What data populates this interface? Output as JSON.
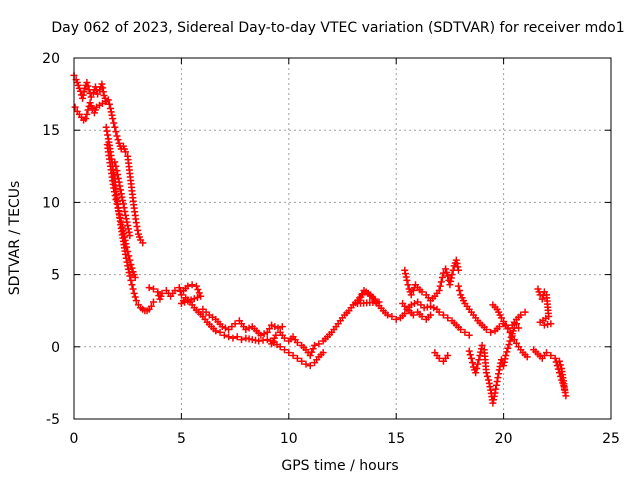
{
  "chart_data": {
    "type": "scatter",
    "title": "Day 062 of 2023, Sidereal Day-to-day VTEC variation (SDTVAR) for receiver mdo1",
    "xlabel": "GPS time / hours",
    "ylabel": "SDTVAR / TECUs",
    "xlim": [
      0,
      25
    ],
    "ylim": [
      -5,
      20
    ],
    "xticks": [
      "0",
      "5",
      "10",
      "15",
      "20",
      "25"
    ],
    "yticks": [
      "-5",
      "0",
      "5",
      "10",
      "15",
      "20"
    ],
    "grid": true,
    "marker": "+",
    "color": "#ff0000",
    "series": [
      {
        "name": "SDTVAR",
        "points": [
          [
            0.0,
            18.8
          ],
          [
            0.1,
            18.5
          ],
          [
            0.2,
            18.1
          ],
          [
            0.3,
            17.7
          ],
          [
            0.4,
            17.2
          ],
          [
            0.5,
            17.9
          ],
          [
            0.6,
            18.3
          ],
          [
            0.7,
            17.8
          ],
          [
            0.8,
            17.3
          ],
          [
            0.9,
            17.6
          ],
          [
            1.0,
            18.0
          ],
          [
            1.1,
            17.5
          ],
          [
            1.2,
            17.8
          ],
          [
            1.3,
            18.2
          ],
          [
            1.4,
            17.4
          ],
          [
            1.5,
            17.0
          ],
          [
            0.05,
            16.6
          ],
          [
            0.15,
            16.3
          ],
          [
            0.25,
            16.1
          ],
          [
            0.35,
            15.9
          ],
          [
            0.45,
            15.7
          ],
          [
            0.55,
            15.8
          ],
          [
            0.65,
            16.4
          ],
          [
            0.75,
            16.9
          ],
          [
            0.85,
            16.5
          ],
          [
            0.95,
            16.2
          ],
          [
            1.05,
            16.6
          ],
          [
            1.6,
            17.1
          ],
          [
            1.7,
            16.5
          ],
          [
            1.8,
            15.8
          ],
          [
            1.9,
            15.2
          ],
          [
            2.0,
            14.6
          ],
          [
            2.1,
            14.1
          ],
          [
            2.2,
            13.7
          ],
          [
            2.3,
            13.9
          ],
          [
            2.4,
            13.5
          ],
          [
            2.5,
            13.2
          ],
          [
            2.6,
            12.0
          ],
          [
            2.7,
            10.8
          ],
          [
            2.8,
            9.6
          ],
          [
            2.9,
            8.6
          ],
          [
            3.0,
            7.8
          ],
          [
            3.1,
            7.4
          ],
          [
            3.2,
            7.2
          ],
          [
            1.5,
            15.2
          ],
          [
            1.6,
            14.4
          ],
          [
            1.7,
            13.5
          ],
          [
            1.8,
            12.5
          ],
          [
            1.9,
            11.4
          ],
          [
            2.0,
            10.3
          ],
          [
            2.1,
            9.2
          ],
          [
            2.2,
            8.2
          ],
          [
            2.3,
            7.3
          ],
          [
            2.4,
            6.4
          ],
          [
            2.5,
            5.6
          ],
          [
            2.6,
            4.9
          ],
          [
            2.7,
            4.3
          ],
          [
            2.8,
            3.7
          ],
          [
            2.9,
            3.2
          ],
          [
            3.0,
            2.9
          ],
          [
            3.1,
            2.7
          ],
          [
            3.2,
            2.6
          ],
          [
            3.3,
            2.5
          ],
          [
            3.4,
            2.5
          ],
          [
            3.5,
            2.6
          ],
          [
            3.6,
            2.8
          ],
          [
            3.7,
            3.1
          ],
          [
            1.55,
            14.0
          ],
          [
            1.65,
            13.0
          ],
          [
            1.75,
            12.0
          ],
          [
            1.85,
            11.0
          ],
          [
            1.95,
            10.2
          ],
          [
            2.05,
            9.6
          ],
          [
            2.15,
            8.9
          ],
          [
            2.25,
            8.3
          ],
          [
            2.35,
            7.6
          ],
          [
            2.45,
            6.9
          ],
          [
            2.55,
            6.3
          ],
          [
            2.65,
            5.7
          ],
          [
            2.75,
            5.2
          ],
          [
            2.85,
            4.8
          ],
          [
            1.9,
            12.8
          ],
          [
            2.0,
            12.2
          ],
          [
            2.1,
            11.4
          ],
          [
            2.2,
            10.6
          ],
          [
            2.3,
            9.9
          ],
          [
            2.4,
            9.1
          ],
          [
            2.5,
            8.4
          ],
          [
            2.6,
            7.7
          ],
          [
            3.5,
            4.1
          ],
          [
            3.7,
            4.0
          ],
          [
            3.9,
            3.8
          ],
          [
            4.0,
            3.3
          ],
          [
            4.1,
            3.7
          ],
          [
            4.3,
            3.9
          ],
          [
            4.5,
            3.5
          ],
          [
            4.7,
            3.9
          ],
          [
            4.9,
            4.1
          ],
          [
            5.0,
            3.6
          ],
          [
            5.1,
            3.9
          ],
          [
            5.3,
            4.2
          ],
          [
            5.5,
            4.3
          ],
          [
            5.7,
            4.2
          ],
          [
            5.9,
            3.5
          ],
          [
            5.0,
            3.0
          ],
          [
            5.2,
            3.4
          ],
          [
            5.4,
            3.1
          ],
          [
            5.6,
            2.7
          ],
          [
            5.8,
            2.4
          ],
          [
            6.0,
            2.1
          ],
          [
            6.2,
            1.7
          ],
          [
            6.4,
            1.4
          ],
          [
            6.6,
            1.1
          ],
          [
            6.8,
            1.0
          ],
          [
            7.0,
            0.8
          ],
          [
            7.2,
            0.7
          ],
          [
            7.4,
            0.6
          ],
          [
            7.6,
            0.7
          ],
          [
            7.8,
            0.5
          ],
          [
            6.0,
            2.6
          ],
          [
            6.3,
            2.2
          ],
          [
            6.6,
            1.9
          ],
          [
            6.9,
            1.4
          ],
          [
            7.2,
            1.2
          ],
          [
            7.5,
            1.6
          ],
          [
            7.7,
            1.8
          ],
          [
            8.0,
            1.2
          ],
          [
            8.3,
            1.4
          ],
          [
            8.5,
            1.1
          ],
          [
            8.7,
            0.8
          ],
          [
            9.0,
            1.0
          ],
          [
            9.2,
            1.5
          ],
          [
            9.5,
            1.3
          ],
          [
            9.7,
            1.4
          ],
          [
            8.0,
            0.6
          ],
          [
            8.3,
            0.5
          ],
          [
            8.6,
            0.4
          ],
          [
            9.0,
            0.5
          ],
          [
            9.3,
            0.3
          ],
          [
            9.6,
            0.0
          ],
          [
            9.8,
            -0.2
          ],
          [
            10.0,
            -0.4
          ],
          [
            10.2,
            -0.6
          ],
          [
            10.4,
            -0.8
          ],
          [
            10.6,
            -1.0
          ],
          [
            10.8,
            -1.2
          ],
          [
            11.0,
            -1.3
          ],
          [
            11.2,
            -1.1
          ],
          [
            11.4,
            -0.7
          ],
          [
            11.6,
            -0.4
          ],
          [
            9.2,
            0.2
          ],
          [
            9.4,
            0.8
          ],
          [
            9.6,
            1.0
          ],
          [
            9.8,
            0.6
          ],
          [
            10.0,
            0.4
          ],
          [
            10.2,
            0.7
          ],
          [
            10.4,
            0.3
          ],
          [
            10.6,
            0.1
          ],
          [
            10.8,
            -0.2
          ],
          [
            11.0,
            -0.6
          ],
          [
            11.2,
            0.1
          ],
          [
            11.4,
            0.2
          ],
          [
            11.6,
            0.4
          ],
          [
            11.8,
            0.7
          ],
          [
            12.0,
            1.0
          ],
          [
            12.2,
            1.4
          ],
          [
            12.4,
            1.8
          ],
          [
            12.6,
            2.2
          ],
          [
            12.8,
            2.5
          ],
          [
            13.0,
            2.9
          ],
          [
            13.2,
            3.2
          ],
          [
            13.4,
            3.6
          ],
          [
            13.6,
            3.8
          ],
          [
            13.8,
            3.6
          ],
          [
            14.0,
            3.3
          ],
          [
            14.2,
            3.1
          ],
          [
            13.2,
            3.0
          ],
          [
            13.5,
            3.9
          ],
          [
            13.7,
            3.7
          ],
          [
            14.4,
            2.5
          ],
          [
            14.6,
            2.2
          ],
          [
            14.8,
            2.1
          ],
          [
            15.0,
            1.9
          ],
          [
            15.2,
            2.0
          ],
          [
            15.4,
            2.3
          ],
          [
            15.6,
            2.5
          ],
          [
            15.8,
            2.2
          ],
          [
            16.0,
            2.4
          ],
          [
            16.2,
            2.1
          ],
          [
            16.4,
            1.9
          ],
          [
            16.6,
            2.2
          ],
          [
            15.4,
            5.3
          ],
          [
            15.5,
            4.6
          ],
          [
            15.6,
            4.0
          ],
          [
            15.7,
            3.6
          ],
          [
            15.8,
            3.9
          ],
          [
            15.9,
            4.3
          ],
          [
            16.0,
            4.1
          ],
          [
            16.2,
            3.8
          ],
          [
            16.4,
            3.6
          ],
          [
            16.6,
            3.2
          ],
          [
            16.8,
            3.5
          ],
          [
            17.0,
            3.9
          ],
          [
            17.1,
            4.5
          ],
          [
            17.2,
            5.1
          ],
          [
            17.3,
            5.4
          ],
          [
            17.4,
            4.9
          ],
          [
            17.5,
            4.3
          ],
          [
            17.6,
            5.0
          ],
          [
            17.7,
            5.6
          ],
          [
            17.8,
            6.0
          ],
          [
            17.9,
            5.3
          ],
          [
            15.3,
            3.0
          ],
          [
            15.5,
            2.6
          ],
          [
            15.7,
            2.9
          ],
          [
            16.0,
            3.1
          ],
          [
            16.3,
            2.7
          ],
          [
            16.6,
            2.8
          ],
          [
            16.9,
            2.6
          ],
          [
            17.0,
            2.4
          ],
          [
            17.2,
            2.2
          ],
          [
            17.4,
            2.0
          ],
          [
            17.6,
            1.8
          ],
          [
            17.8,
            1.5
          ],
          [
            18.0,
            1.2
          ],
          [
            18.2,
            1.0
          ],
          [
            18.4,
            0.8
          ],
          [
            17.9,
            4.2
          ],
          [
            18.0,
            3.6
          ],
          [
            18.2,
            3.0
          ],
          [
            18.4,
            2.6
          ],
          [
            18.6,
            2.2
          ],
          [
            18.8,
            1.8
          ],
          [
            19.0,
            1.5
          ],
          [
            19.2,
            1.2
          ],
          [
            19.4,
            1.0
          ],
          [
            19.6,
            1.1
          ],
          [
            19.8,
            1.4
          ],
          [
            20.0,
            1.6
          ],
          [
            20.2,
            1.3
          ],
          [
            20.4,
            1.5
          ],
          [
            20.6,
            1.9
          ],
          [
            20.8,
            2.2
          ],
          [
            21.0,
            2.4
          ],
          [
            18.4,
            -0.3
          ],
          [
            18.5,
            -0.8
          ],
          [
            18.6,
            -1.4
          ],
          [
            18.7,
            -1.8
          ],
          [
            18.8,
            -1.2
          ],
          [
            18.9,
            -0.6
          ],
          [
            19.0,
            0.1
          ],
          [
            19.1,
            -0.2
          ],
          [
            19.2,
            -1.8
          ],
          [
            19.3,
            -2.3
          ],
          [
            19.4,
            -3.0
          ],
          [
            19.5,
            -3.9
          ],
          [
            19.6,
            -3.2
          ],
          [
            19.7,
            -2.4
          ],
          [
            19.8,
            -1.6
          ],
          [
            19.9,
            -0.9
          ],
          [
            20.0,
            -1.3
          ],
          [
            20.1,
            -0.6
          ],
          [
            20.2,
            -0.1
          ],
          [
            20.3,
            0.4
          ],
          [
            20.4,
            0.9
          ],
          [
            20.5,
            1.3
          ],
          [
            20.6,
            1.6
          ],
          [
            20.7,
            1.3
          ],
          [
            16.8,
            -0.4
          ],
          [
            17.0,
            -0.8
          ],
          [
            17.2,
            -1.0
          ],
          [
            17.4,
            -0.6
          ],
          [
            19.5,
            2.9
          ],
          [
            19.7,
            2.6
          ],
          [
            19.9,
            2.0
          ],
          [
            20.1,
            1.5
          ],
          [
            20.3,
            1.0
          ],
          [
            20.5,
            0.5
          ],
          [
            20.7,
            0.0
          ],
          [
            20.9,
            -0.4
          ],
          [
            21.1,
            -0.7
          ],
          [
            21.6,
            4.0
          ],
          [
            21.7,
            3.6
          ],
          [
            21.8,
            3.3
          ],
          [
            21.9,
            3.8
          ],
          [
            22.0,
            3.6
          ],
          [
            22.1,
            2.1
          ],
          [
            21.7,
            1.7
          ],
          [
            21.9,
            1.5
          ],
          [
            22.2,
            1.6
          ],
          [
            21.4,
            -0.2
          ],
          [
            21.6,
            -0.5
          ],
          [
            21.8,
            -0.8
          ],
          [
            22.0,
            -0.4
          ],
          [
            22.2,
            -0.6
          ],
          [
            22.4,
            -0.8
          ],
          [
            22.5,
            -1.3
          ],
          [
            22.6,
            -1.8
          ],
          [
            22.7,
            -2.3
          ],
          [
            22.8,
            -2.7
          ],
          [
            22.9,
            -3.4
          ],
          [
            22.85,
            -3.0
          ],
          [
            22.7,
            -1.5
          ],
          [
            22.6,
            -1.0
          ]
        ]
      }
    ]
  }
}
